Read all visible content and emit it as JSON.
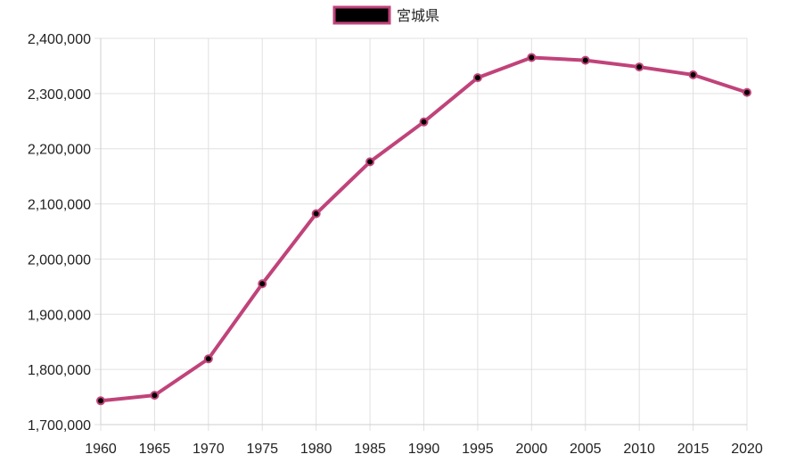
{
  "chart_data": {
    "type": "line",
    "x": [
      1960,
      1965,
      1970,
      1975,
      1980,
      1985,
      1990,
      1995,
      2000,
      2005,
      2010,
      2015,
      2020
    ],
    "series": [
      {
        "name": "宮城県",
        "values": [
          1743195,
          1753126,
          1819223,
          1955267,
          2082320,
          2176295,
          2248558,
          2328739,
          2365320,
          2360218,
          2348165,
          2333899,
          2301996
        ]
      }
    ],
    "ylim": [
      1700000,
      2400000
    ],
    "yticks": [
      1700000,
      1800000,
      1900000,
      2000000,
      2100000,
      2200000,
      2300000,
      2400000
    ],
    "ytick_labels": [
      "1,700,000",
      "1,800,000",
      "1,900,000",
      "2,000,000",
      "2,100,000",
      "2,200,000",
      "2,300,000",
      "2,400,000"
    ],
    "xtick_labels": [
      "1960",
      "1965",
      "1970",
      "1975",
      "1980",
      "1985",
      "1990",
      "1995",
      "2000",
      "2005",
      "2010",
      "2015",
      "2020"
    ],
    "legend_position": "top-center",
    "grid": true,
    "colors": {
      "line": "#c0437a",
      "point_fill": "#000000",
      "grid": "#e0e0e0"
    }
  }
}
